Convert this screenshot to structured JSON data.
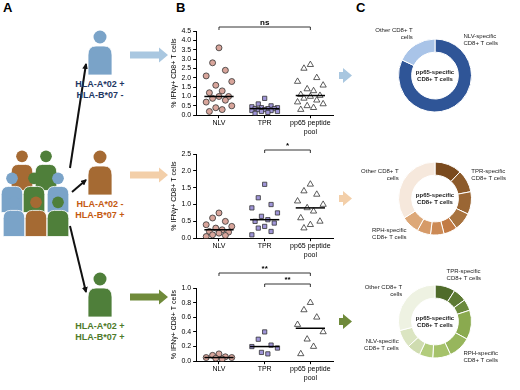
{
  "figure": {
    "panel_letters": [
      "A",
      "B",
      "C"
    ],
    "subjects": [
      {
        "lines": [
          "HLA-A*02 +",
          "HLA-B*07 -"
        ],
        "color": "#1f3864"
      },
      {
        "lines": [
          "HLA-A*02 -",
          "HLA-B*07 +"
        ],
        "color": "#c55a11"
      },
      {
        "lines": [
          "HLA-A*02 +",
          "HLA-B*07 +"
        ],
        "color": "#4e7a2a"
      }
    ]
  },
  "chart_data": [
    {
      "type": "scatter",
      "y_label": "% IFNγ+ CD8+ T cells",
      "grid": false,
      "ylim": [
        0,
        4.5
      ],
      "yticks": [
        {
          "value": 0,
          "label": "0.0"
        },
        0.5,
        {
          "value": 1,
          "label": "1.0"
        },
        1.5,
        {
          "value": 2,
          "label": "2.0"
        },
        2.5,
        {
          "value": 3,
          "label": "3.0"
        },
        3.5,
        {
          "value": 4,
          "label": "4.0"
        },
        4.5
      ],
      "series": [
        {
          "name": "NLV",
          "color": "#d8a59b",
          "marker": "circle",
          "median": 1.0,
          "values": [
            3.6,
            2.8,
            2.4,
            2.1,
            1.8,
            1.6,
            1.3,
            1.2,
            1.0,
            1.0,
            0.9,
            0.8,
            0.7,
            0.5,
            0.4,
            0.3,
            0.2
          ]
        },
        {
          "name": "TPR",
          "color": "#9f95d8",
          "marker": "square",
          "median": 0.35,
          "values": [
            0.9,
            0.6,
            0.5,
            0.45,
            0.4,
            0.4,
            0.35,
            0.35,
            0.35,
            0.3,
            0.3,
            0.25,
            0.25,
            0.2,
            0.2,
            0.15,
            0.1
          ]
        },
        {
          "name": "pp65 peptide pool",
          "color": "#ffffff",
          "marker": "triangle",
          "median": 1.05,
          "values": [
            2.7,
            2.5,
            2.0,
            1.8,
            1.6,
            1.4,
            1.3,
            1.1,
            1.05,
            1.0,
            0.9,
            0.8,
            0.7,
            0.6,
            0.5,
            0.4,
            0.3
          ]
        }
      ],
      "annotations": [
        {
          "from": "NLV",
          "to": "pp65 peptide pool",
          "text": "ns"
        }
      ]
    },
    {
      "type": "scatter",
      "y_label": "% IFNγ+ CD8+ T cells",
      "grid": false,
      "ylim": [
        0,
        2.5
      ],
      "yticks": [
        {
          "value": 0,
          "label": "0.0"
        },
        0.5,
        {
          "value": 1,
          "label": "1.0"
        },
        1.5,
        {
          "value": 2,
          "label": "2.0"
        },
        2.5
      ],
      "series": [
        {
          "name": "NLV",
          "color": "#d8a59b",
          "marker": "circle",
          "median": 0.25,
          "values": [
            0.75,
            0.6,
            0.5,
            0.4,
            0.35,
            0.3,
            0.25,
            0.2,
            0.18,
            0.15,
            0.1,
            0.08,
            0.05
          ]
        },
        {
          "name": "TPR",
          "color": "#9f95d8",
          "marker": "square",
          "median": 0.55,
          "values": [
            1.6,
            1.2,
            1.0,
            0.9,
            0.75,
            0.65,
            0.55,
            0.5,
            0.45,
            0.35,
            0.3,
            0.2,
            0.1
          ]
        },
        {
          "name": "pp65 peptide pool",
          "color": "#ffffff",
          "marker": "triangle",
          "median": 0.9,
          "values": [
            1.6,
            1.4,
            1.3,
            1.1,
            1.0,
            0.9,
            0.8,
            0.6,
            0.5,
            0.4,
            0.3
          ]
        }
      ],
      "annotations": [
        {
          "from": "TPR",
          "to": "pp65 peptide pool",
          "text": "*"
        }
      ]
    },
    {
      "type": "scatter",
      "y_label": "% IFNγ+ CD8+ T cells",
      "grid": false,
      "ylim": [
        0,
        1.0
      ],
      "yticks": [
        {
          "value": 0,
          "label": "0.0"
        },
        0.2,
        0.4,
        0.6,
        0.8,
        {
          "value": 1,
          "label": "1.0"
        }
      ],
      "series": [
        {
          "name": "NLV",
          "color": "#d8a59b",
          "marker": "circle",
          "median": 0.05,
          "values": [
            0.1,
            0.08,
            0.06,
            0.05,
            0.05,
            0.04,
            0.03
          ]
        },
        {
          "name": "TPR",
          "color": "#9f95d8",
          "marker": "square",
          "median": 0.2,
          "values": [
            0.4,
            0.3,
            0.22,
            0.2,
            0.18,
            0.12,
            0.1
          ]
        },
        {
          "name": "pp65 peptide pool",
          "color": "#ffffff",
          "marker": "triangle",
          "median": 0.45,
          "values": [
            0.8,
            0.7,
            0.6,
            0.5,
            0.4,
            0.3,
            0.2,
            0.1
          ]
        }
      ],
      "annotations": [
        {
          "from": "TPR",
          "to": "pp65 peptide pool",
          "text": "**"
        },
        {
          "from": "NLV",
          "to": "pp65 peptide pool",
          "text": "**"
        }
      ]
    },
    {
      "type": "doughnut",
      "center_text": "pp65-specific CD8+ T cells",
      "categories": [
        "NLV-specific CD8+ T cells",
        "Other CD8+ T cells"
      ],
      "values": [
        82,
        18
      ],
      "colors": [
        "#2f5597",
        "#a9c4e8"
      ]
    },
    {
      "type": "doughnut",
      "center_text": "pp65-specific CD8+ T cells",
      "categories": [
        null,
        "TPR-specific CD8+ T cells",
        null,
        null,
        null,
        null,
        null,
        "RPH-specific CD8+ T cells",
        "Other CD8+ T cells"
      ],
      "values": [
        12,
        10,
        10,
        8,
        6,
        6,
        6,
        8,
        34
      ],
      "colors": [
        "#7a4a1e",
        "#8c5a2a",
        "#9a6634",
        "#a8733f",
        "#c27b45",
        "#cc8a55",
        "#d69a68",
        "#dda878",
        "#f6e8dc"
      ]
    },
    {
      "type": "doughnut",
      "center_text": "pp65-specific CD8+ T cells",
      "categories": [
        "TPR-specific CD8+ T cells",
        null,
        null,
        null,
        "RPH-specific CD8+ T cells",
        null,
        null,
        null,
        "NLV-specific CD8+ T cells",
        "Other CD8+ T cells"
      ],
      "values": [
        9,
        6,
        5,
        13,
        10,
        8,
        6,
        6,
        8,
        29
      ],
      "colors": [
        "#4f6b2a",
        "#5d7a33",
        "#6b8a3c",
        "#8aaa4f",
        "#97b65c",
        "#a5c26a",
        "#b2cc7c",
        "#cfdcb0",
        "#dbe5c2",
        "#eef2e2"
      ]
    }
  ]
}
